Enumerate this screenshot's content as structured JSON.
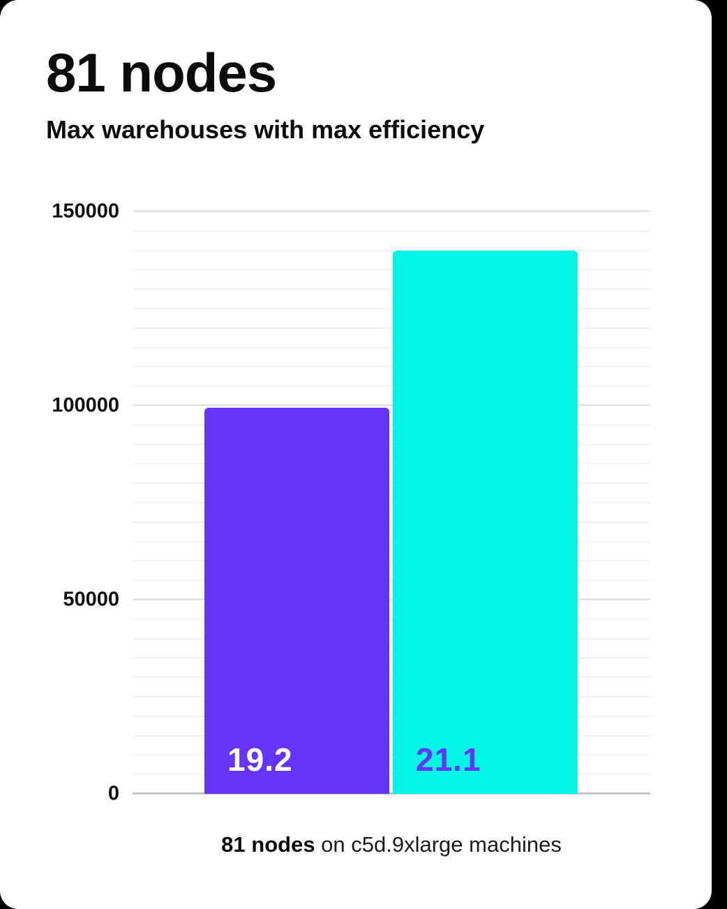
{
  "header": {
    "title": "81 nodes",
    "subtitle": "Max warehouses with max efficiency"
  },
  "caption": {
    "bold": "81 nodes",
    "rest": " on c5d.9xlarge machines"
  },
  "chart_data": {
    "type": "bar",
    "title": "81 nodes",
    "subtitle": "Max warehouses with max efficiency",
    "caption": "81 nodes on c5d.9xlarge machines",
    "ylim": [
      0,
      150000
    ],
    "yticks": [
      0,
      50000,
      100000,
      150000
    ],
    "ytick_labels": [
      "0",
      "50000",
      "100000",
      "150000"
    ],
    "minor_grid_step": 5000,
    "major_grid_step": 50000,
    "grid": true,
    "xlabel": "",
    "ylabel": "",
    "bars": [
      {
        "label": "19.2",
        "value": 99500,
        "color": "#6633fa",
        "label_color": "#ffffff"
      },
      {
        "label": "21.1",
        "value": 140000,
        "color": "#00f5e4",
        "label_color": "#6633fa"
      }
    ]
  },
  "colors": {
    "bar_purple": "#6633fa",
    "bar_cyan": "#00f5e4",
    "axis_line": "#c4c4c4",
    "major_grid": "#e5e5e5",
    "minor_grid": "#f2f2f2",
    "card_background": "#ffffff"
  }
}
